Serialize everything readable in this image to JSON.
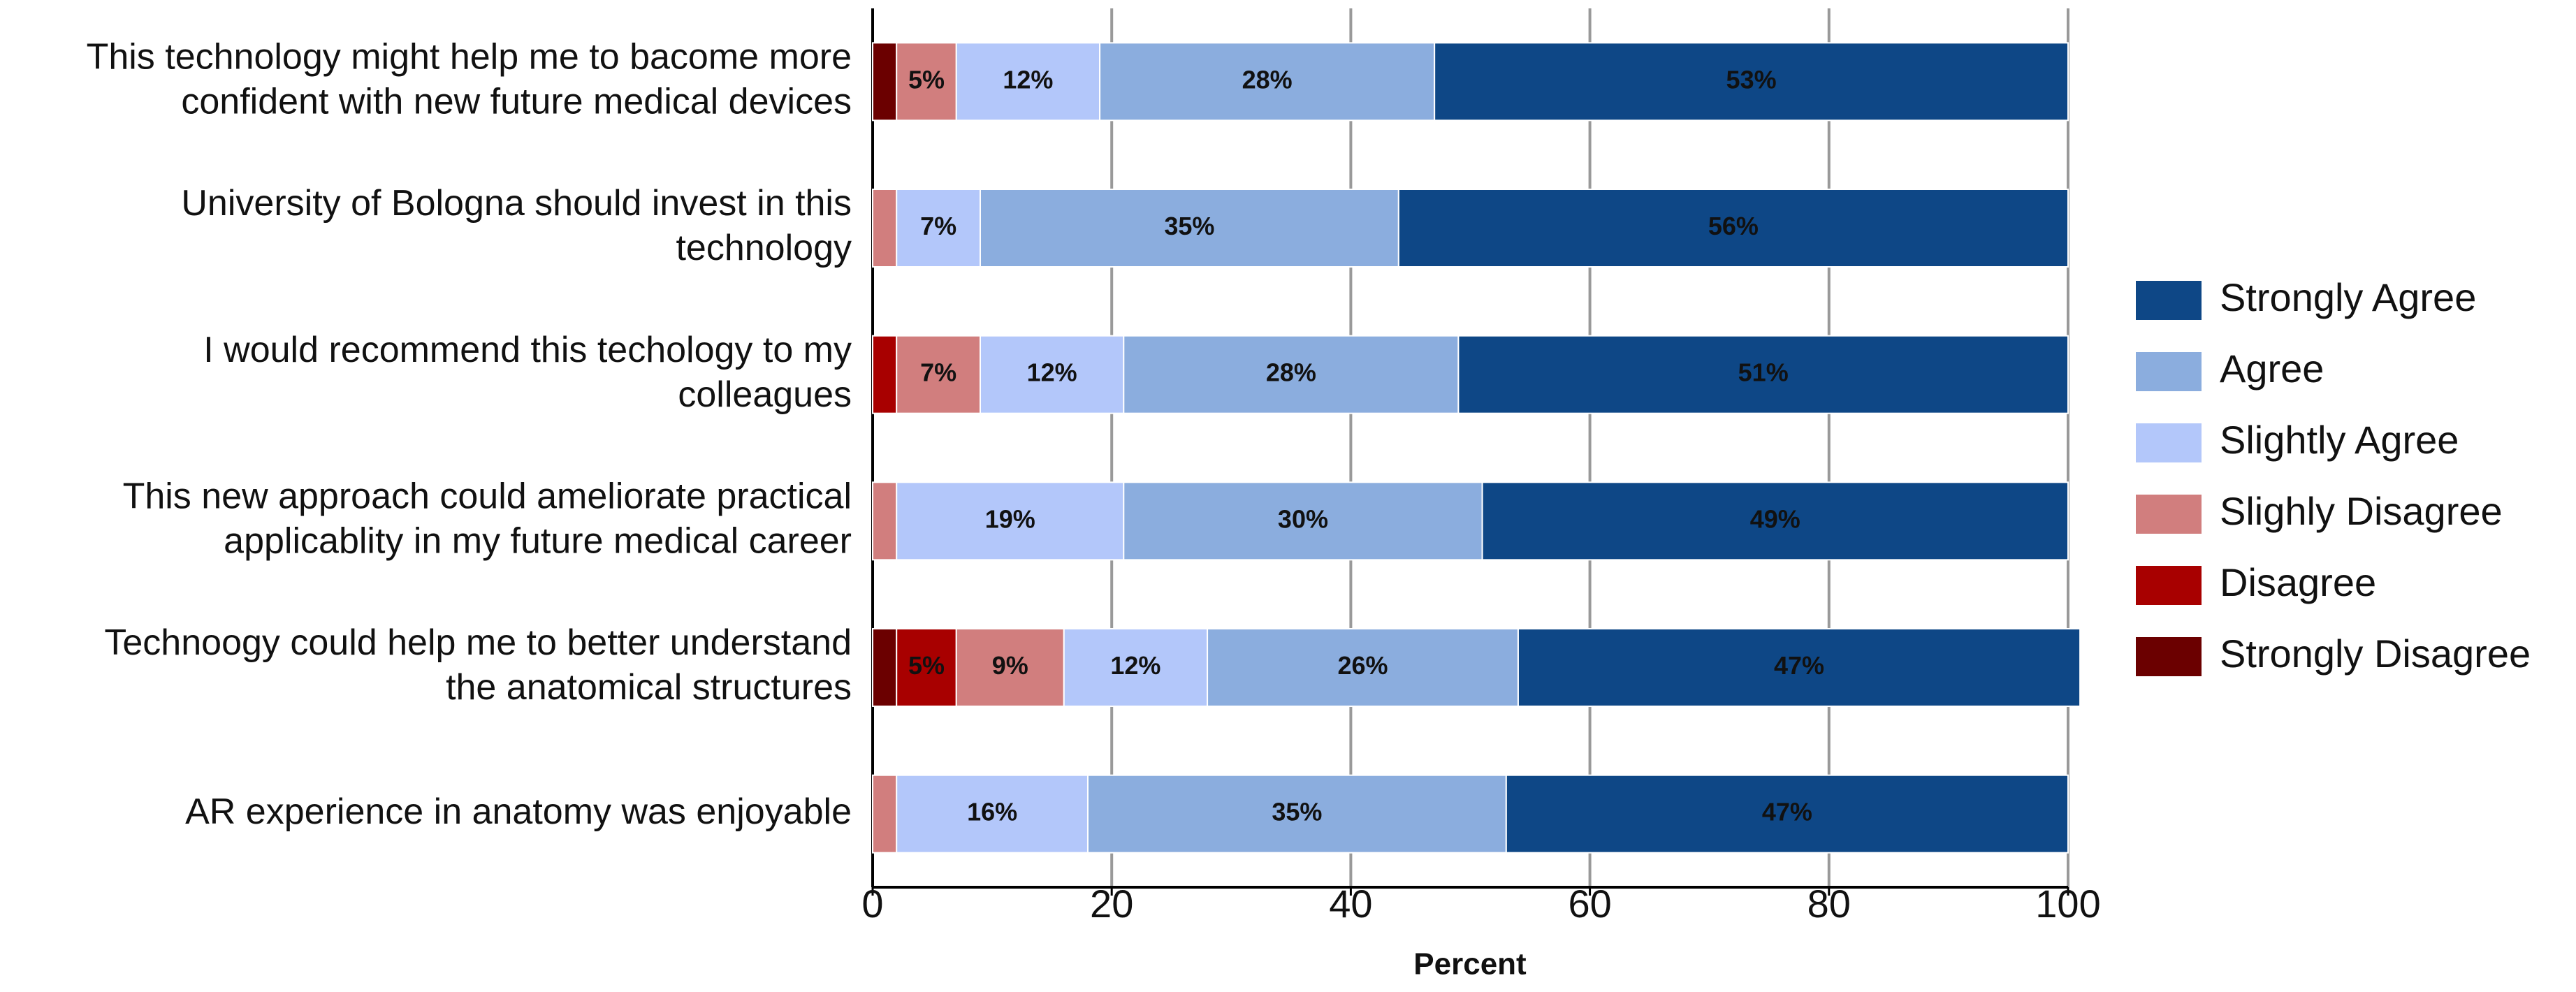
{
  "chart_data": {
    "type": "stacked-bar-horizontal",
    "categories": [
      [
        "This technology might help me to bacome more",
        "confident with new future medical devices"
      ],
      [
        "University of Bologna should invest in this",
        "technology"
      ],
      [
        "I would recommend this techology to my",
        "colleagues"
      ],
      [
        "This new approach could ameliorate practical",
        "applicablity in my future medical career"
      ],
      [
        "Technoogy could help me to better understand",
        "the anatomical structures"
      ],
      [
        "AR experience in anatomy was enjoyable"
      ]
    ],
    "series": [
      {
        "name": "Strongly Disagree",
        "color": "#6b0000",
        "values": [
          2,
          null,
          null,
          null,
          2,
          null
        ],
        "value_labels": [
          null,
          null,
          null,
          null,
          null,
          null
        ]
      },
      {
        "name": "Disagree",
        "color": "#a80000",
        "values": [
          null,
          null,
          2,
          null,
          5,
          null
        ],
        "value_labels": [
          null,
          null,
          null,
          null,
          "5%",
          null
        ]
      },
      {
        "name": "Slighly Disagree",
        "color": "#d17e7e",
        "values": [
          5,
          2,
          7,
          2,
          9,
          2
        ],
        "value_labels": [
          "5%",
          null,
          "7%",
          null,
          "9%",
          null
        ]
      },
      {
        "name": "Slightly Agree",
        "color": "#b3c7fa",
        "values": [
          12,
          7,
          12,
          19,
          12,
          16
        ],
        "value_labels": [
          "12%",
          "7%",
          "12%",
          "19%",
          "12%",
          "16%"
        ]
      },
      {
        "name": "Agree",
        "color": "#8badde",
        "values": [
          28,
          35,
          28,
          30,
          26,
          35
        ],
        "value_labels": [
          "28%",
          "35%",
          "28%",
          "30%",
          "26%",
          "35%"
        ]
      },
      {
        "name": "Strongly Agree",
        "color": "#0e4786",
        "values": [
          53,
          56,
          51,
          49,
          47,
          47
        ],
        "value_labels": [
          "53%",
          "56%",
          "51%",
          "49%",
          "47%",
          "47%"
        ]
      }
    ],
    "xlim": [
      0,
      100
    ],
    "xticks": [
      0,
      20,
      40,
      60,
      80,
      100
    ],
    "xlabel": "Percent",
    "grid": true,
    "legend": "right"
  }
}
